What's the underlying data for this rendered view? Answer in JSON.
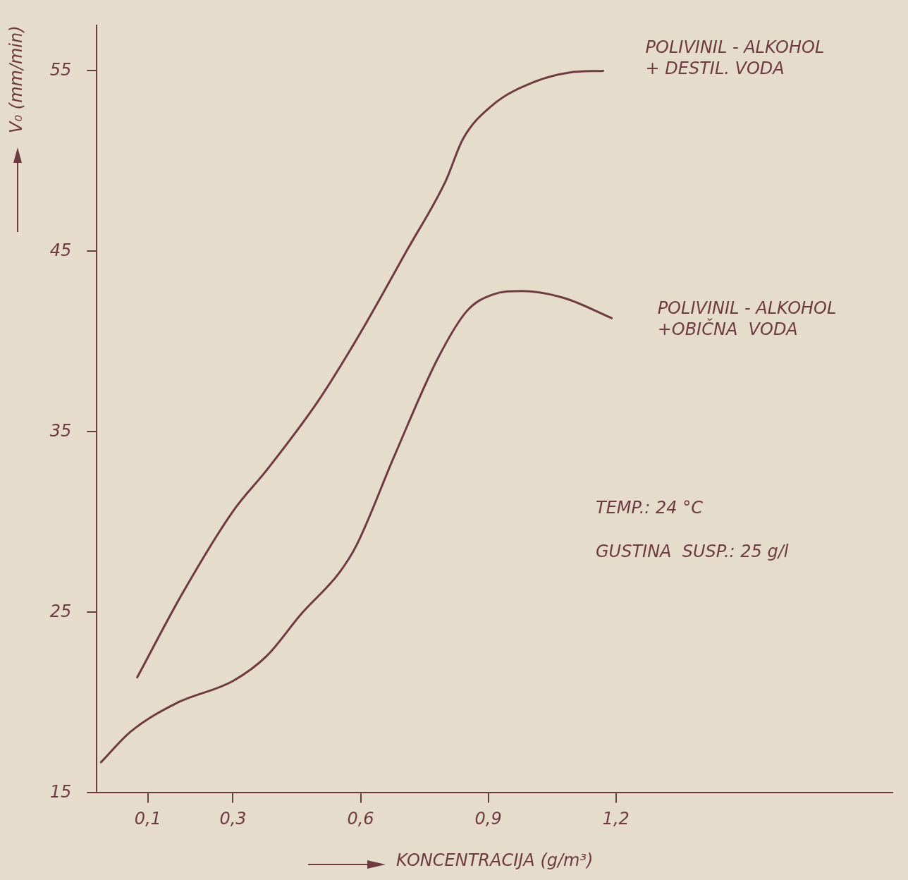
{
  "chart_data": {
    "type": "line",
    "xlabel": "KONCENTRACIJA (g/m³)",
    "ylabel": "V₀ (mm/min)",
    "xlim": [
      -0.02,
      1.85
    ],
    "xticks": [
      {
        "value": 0.1,
        "label": "0,1"
      },
      {
        "value": 0.3,
        "label": "0,3"
      },
      {
        "value": 0.6,
        "label": "0,6"
      },
      {
        "value": 0.9,
        "label": "0,9"
      },
      {
        "value": 1.2,
        "label": "1,2"
      }
    ],
    "ylim": [
      15,
      57.5
    ],
    "yticks": [
      15,
      25,
      35,
      45,
      55
    ],
    "grid": false,
    "legend": false,
    "marker": "none",
    "line_style": "solid",
    "annotations": [
      "TEMP.: 24 °C",
      "GUSTINA  SUSP.: 25 g/l"
    ],
    "series": [
      {
        "name": "POLIVINIL - ALKOHOL\n+ DESTIL. VODA",
        "color": "#6e3b40",
        "x": [
          0.075,
          0.18,
          0.3,
          0.38,
          0.5,
          0.6,
          0.71,
          0.8,
          0.84,
          0.91,
          1.01,
          1.09,
          1.17
        ],
        "values": [
          21.4,
          26.0,
          30.6,
          32.9,
          36.7,
          40.5,
          45.1,
          48.9,
          51.2,
          53.1,
          54.4,
          54.9,
          55.0
        ]
      },
      {
        "name": "POLIVINIL - ALKOHOL\n+OBIČNA  VODA",
        "color": "#6e3b40",
        "x": [
          -0.01,
          0.06,
          0.17,
          0.3,
          0.38,
          0.46,
          0.55,
          0.59,
          0.68,
          0.78,
          0.85,
          0.91,
          0.98,
          1.08,
          1.19
        ],
        "values": [
          16.7,
          18.4,
          20.0,
          21.2,
          22.6,
          24.9,
          27.2,
          28.7,
          33.7,
          39.0,
          41.7,
          42.6,
          42.8,
          42.4,
          41.3
        ]
      }
    ]
  }
}
